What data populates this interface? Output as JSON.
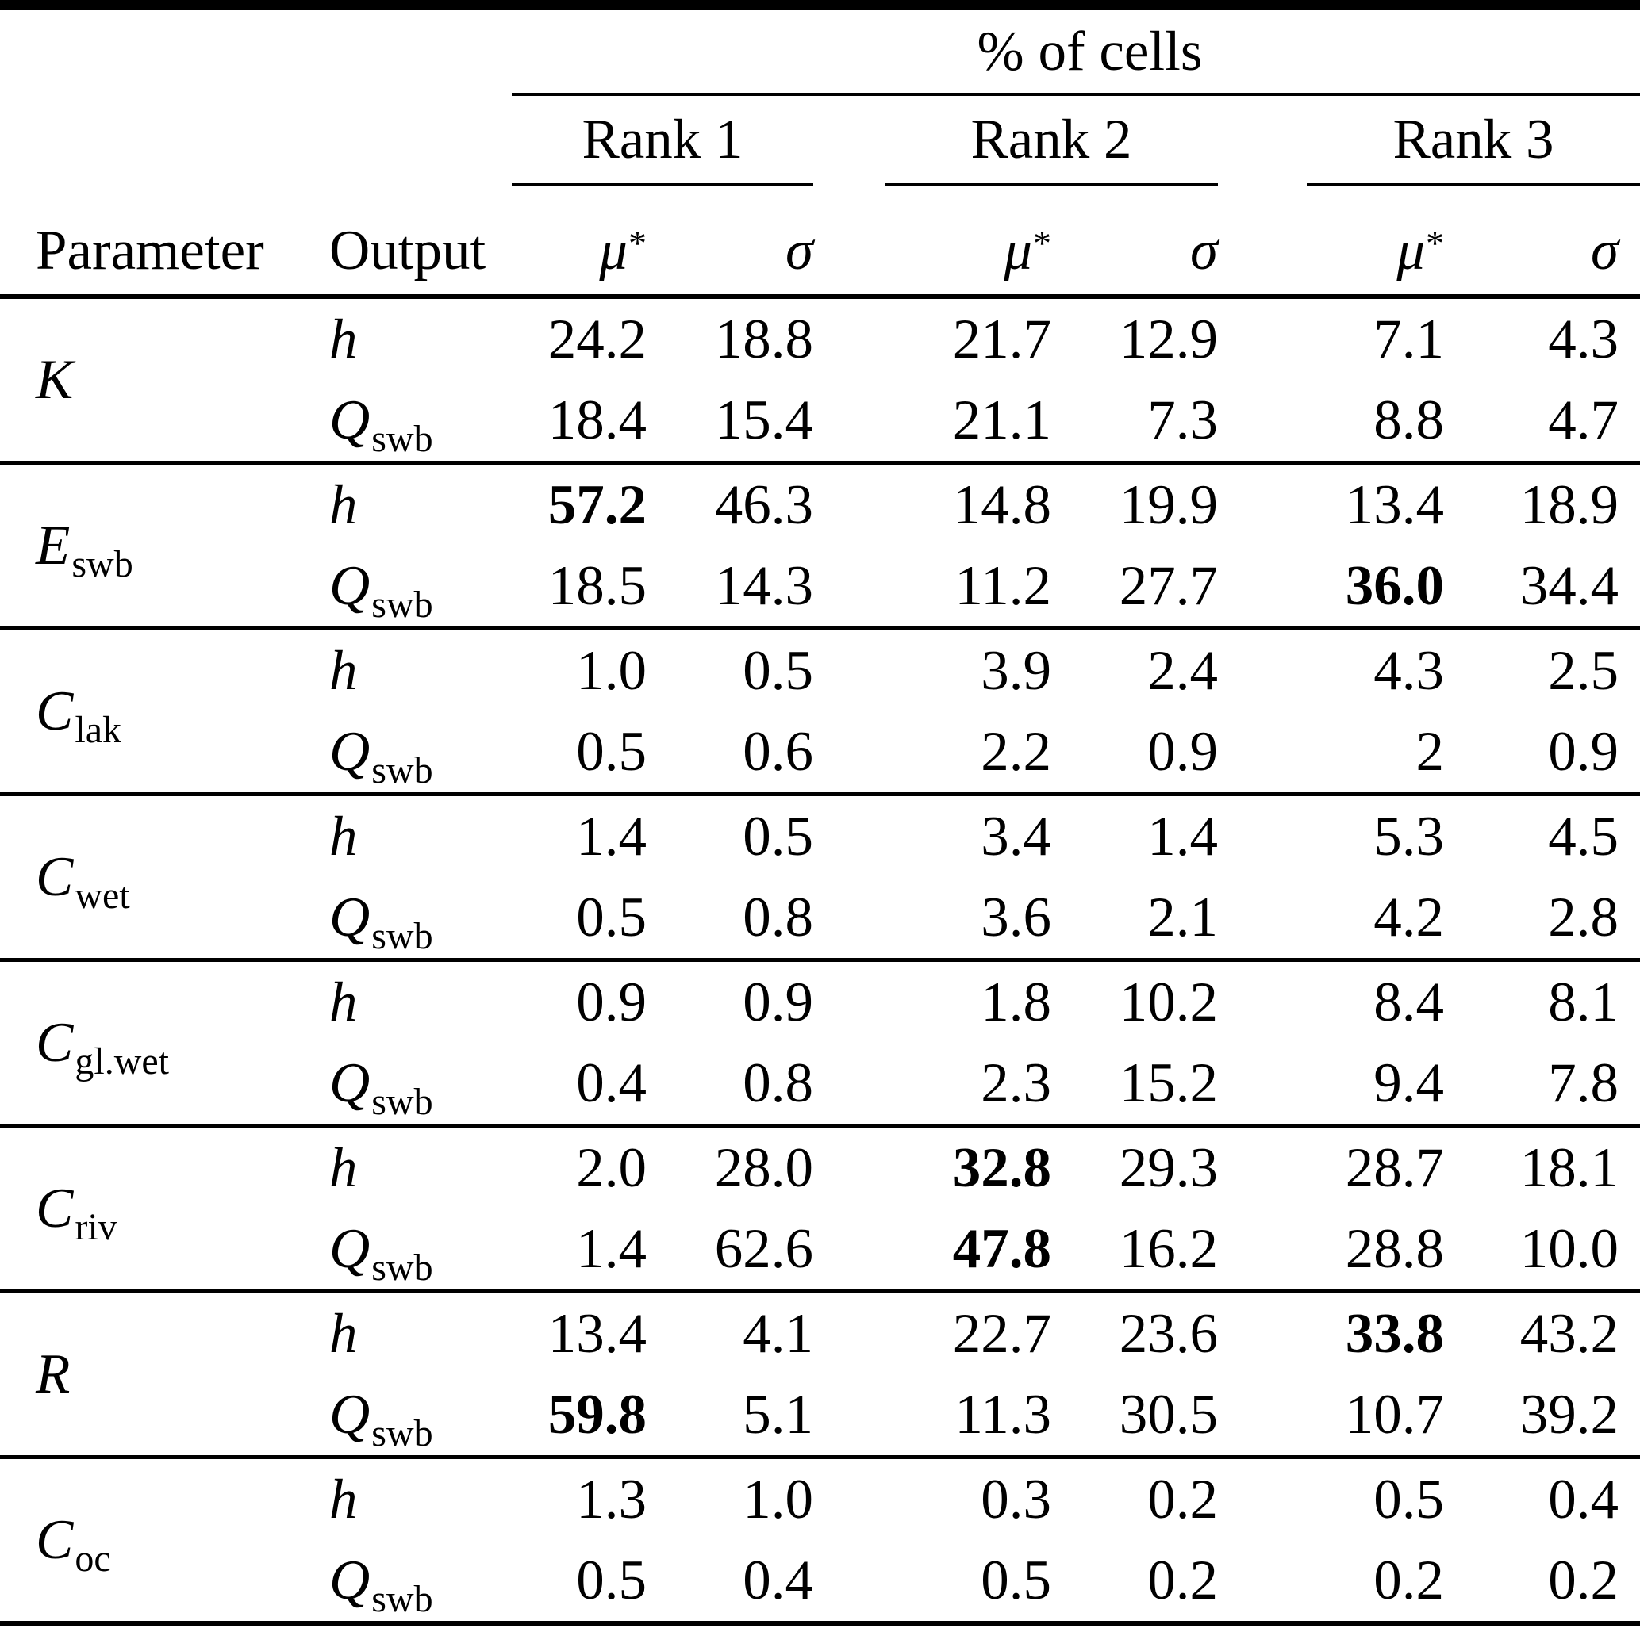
{
  "table": {
    "spanner": "% of cells",
    "ranks": [
      "Rank 1",
      "Rank 2",
      "Rank 3"
    ],
    "columns": {
      "parameter": "Parameter",
      "output": "Output",
      "mu": "μ",
      "mu_sup": "*",
      "sigma": "σ"
    },
    "output_labels": {
      "h": "h",
      "q": "Q",
      "q_sub": "swb"
    },
    "groups": [
      {
        "key": "K",
        "base": "K",
        "sub": "",
        "rows": [
          {
            "output": "h",
            "cells": [
              {
                "v": "24.2"
              },
              {
                "v": "18.8"
              },
              {
                "v": "21.7"
              },
              {
                "v": "12.9"
              },
              {
                "v": "7.1"
              },
              {
                "v": "4.3"
              }
            ]
          },
          {
            "output": "q",
            "cells": [
              {
                "v": "18.4"
              },
              {
                "v": "15.4"
              },
              {
                "v": "21.1"
              },
              {
                "v": "7.3"
              },
              {
                "v": "8.8"
              },
              {
                "v": "4.7"
              }
            ]
          }
        ]
      },
      {
        "key": "Eswb",
        "base": "E",
        "sub": "swb",
        "rows": [
          {
            "output": "h",
            "cells": [
              {
                "v": "57.2",
                "b": true
              },
              {
                "v": "46.3"
              },
              {
                "v": "14.8"
              },
              {
                "v": "19.9"
              },
              {
                "v": "13.4"
              },
              {
                "v": "18.9"
              }
            ]
          },
          {
            "output": "q",
            "cells": [
              {
                "v": "18.5"
              },
              {
                "v": "14.3"
              },
              {
                "v": "11.2"
              },
              {
                "v": "27.7"
              },
              {
                "v": "36.0",
                "b": true
              },
              {
                "v": "34.4"
              }
            ]
          }
        ]
      },
      {
        "key": "Clak",
        "base": "C",
        "sub": "lak",
        "rows": [
          {
            "output": "h",
            "cells": [
              {
                "v": "1.0"
              },
              {
                "v": "0.5"
              },
              {
                "v": "3.9"
              },
              {
                "v": "2.4"
              },
              {
                "v": "4.3"
              },
              {
                "v": "2.5"
              }
            ]
          },
          {
            "output": "q",
            "cells": [
              {
                "v": "0.5"
              },
              {
                "v": "0.6"
              },
              {
                "v": "2.2"
              },
              {
                "v": "0.9"
              },
              {
                "v": "2"
              },
              {
                "v": "0.9"
              }
            ]
          }
        ]
      },
      {
        "key": "Cwet",
        "base": "C",
        "sub": "wet",
        "rows": [
          {
            "output": "h",
            "cells": [
              {
                "v": "1.4"
              },
              {
                "v": "0.5"
              },
              {
                "v": "3.4"
              },
              {
                "v": "1.4"
              },
              {
                "v": "5.3"
              },
              {
                "v": "4.5"
              }
            ]
          },
          {
            "output": "q",
            "cells": [
              {
                "v": "0.5"
              },
              {
                "v": "0.8"
              },
              {
                "v": "3.6"
              },
              {
                "v": "2.1"
              },
              {
                "v": "4.2"
              },
              {
                "v": "2.8"
              }
            ]
          }
        ]
      },
      {
        "key": "Cglwet",
        "base": "C",
        "sub": "gl.wet",
        "rows": [
          {
            "output": "h",
            "cells": [
              {
                "v": "0.9"
              },
              {
                "v": "0.9"
              },
              {
                "v": "1.8"
              },
              {
                "v": "10.2"
              },
              {
                "v": "8.4"
              },
              {
                "v": "8.1"
              }
            ]
          },
          {
            "output": "q",
            "cells": [
              {
                "v": "0.4"
              },
              {
                "v": "0.8"
              },
              {
                "v": "2.3"
              },
              {
                "v": "15.2"
              },
              {
                "v": "9.4"
              },
              {
                "v": "7.8"
              }
            ]
          }
        ]
      },
      {
        "key": "Criv",
        "base": "C",
        "sub": "riv",
        "rows": [
          {
            "output": "h",
            "cells": [
              {
                "v": "2.0"
              },
              {
                "v": "28.0"
              },
              {
                "v": "32.8",
                "b": true
              },
              {
                "v": "29.3"
              },
              {
                "v": "28.7"
              },
              {
                "v": "18.1"
              }
            ]
          },
          {
            "output": "q",
            "cells": [
              {
                "v": "1.4"
              },
              {
                "v": "62.6"
              },
              {
                "v": "47.8",
                "b": true
              },
              {
                "v": "16.2"
              },
              {
                "v": "28.8"
              },
              {
                "v": "10.0"
              }
            ]
          }
        ]
      },
      {
        "key": "R",
        "base": "R",
        "sub": "",
        "rows": [
          {
            "output": "h",
            "cells": [
              {
                "v": "13.4"
              },
              {
                "v": "4.1"
              },
              {
                "v": "22.7"
              },
              {
                "v": "23.6"
              },
              {
                "v": "33.8",
                "b": true
              },
              {
                "v": "43.2"
              }
            ]
          },
          {
            "output": "q",
            "cells": [
              {
                "v": "59.8",
                "b": true
              },
              {
                "v": "5.1"
              },
              {
                "v": "11.3"
              },
              {
                "v": "30.5"
              },
              {
                "v": "10.7"
              },
              {
                "v": "39.2"
              }
            ]
          }
        ]
      },
      {
        "key": "Coc",
        "base": "C",
        "sub": "oc",
        "rows": [
          {
            "output": "h",
            "cells": [
              {
                "v": "1.3"
              },
              {
                "v": "1.0"
              },
              {
                "v": "0.3"
              },
              {
                "v": "0.2"
              },
              {
                "v": "0.5"
              },
              {
                "v": "0.4"
              }
            ]
          },
          {
            "output": "q",
            "cells": [
              {
                "v": "0.5"
              },
              {
                "v": "0.4"
              },
              {
                "v": "0.5"
              },
              {
                "v": "0.2"
              },
              {
                "v": "0.2"
              },
              {
                "v": "0.2"
              }
            ]
          }
        ]
      }
    ]
  },
  "colors": {
    "ink": "#000000",
    "background": "#ffffff"
  }
}
